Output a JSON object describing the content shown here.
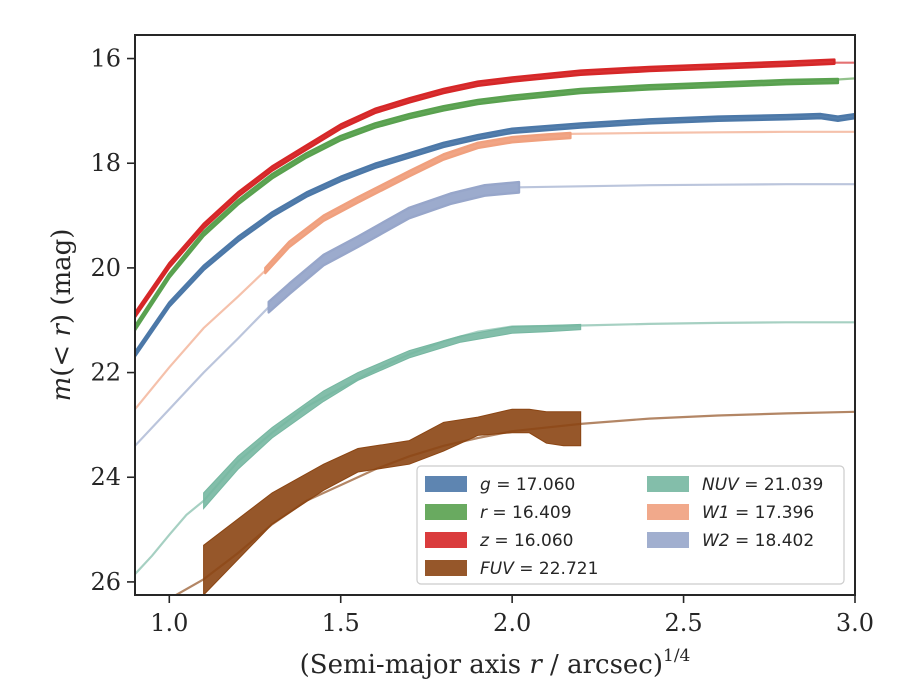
{
  "chart_data": {
    "type": "line",
    "xlabel": "(Semi-major axis r / arcsec)^1/4",
    "ylabel": "m(< r) (mag)",
    "xlim": [
      0.9,
      3.0
    ],
    "ylim": [
      26.25,
      15.55
    ],
    "y_inverted": true,
    "x_ticks": [
      1.0,
      1.5,
      2.0,
      2.5,
      3.0
    ],
    "x_tick_labels": [
      "1.0",
      "1.5",
      "2.0",
      "2.5",
      "3.0"
    ],
    "y_ticks": [
      16,
      18,
      20,
      22,
      24,
      26
    ],
    "y_tick_labels": [
      "16",
      "18",
      "20",
      "22",
      "24",
      "26"
    ],
    "legend_position": "lower-right",
    "series": [
      {
        "name": "g = 17.060",
        "band": "g",
        "color": "#4c78a8",
        "total_mag": 17.06,
        "extrapolation": [],
        "measured": [
          [
            0.9,
            21.65
          ],
          [
            1.0,
            20.7
          ],
          [
            1.1,
            20.0
          ],
          [
            1.2,
            19.45
          ],
          [
            1.3,
            18.98
          ],
          [
            1.4,
            18.6
          ],
          [
            1.5,
            18.3
          ],
          [
            1.6,
            18.05
          ],
          [
            1.7,
            17.85
          ],
          [
            1.8,
            17.65
          ],
          [
            1.9,
            17.5
          ],
          [
            2.0,
            17.38
          ],
          [
            2.2,
            17.28
          ],
          [
            2.4,
            17.2
          ],
          [
            2.6,
            17.15
          ],
          [
            2.8,
            17.12
          ],
          [
            2.9,
            17.1
          ],
          [
            2.95,
            17.15
          ],
          [
            3.0,
            17.1
          ]
        ],
        "band_halfwidth": 0.04
      },
      {
        "name": "r = 16.409",
        "band": "r",
        "color": "#59a14f",
        "total_mag": 16.409,
        "extrapolation": [
          [
            2.95,
            16.4
          ],
          [
            3.0,
            16.38
          ]
        ],
        "measured": [
          [
            0.9,
            21.15
          ],
          [
            1.0,
            20.15
          ],
          [
            1.1,
            19.35
          ],
          [
            1.2,
            18.75
          ],
          [
            1.3,
            18.25
          ],
          [
            1.4,
            17.85
          ],
          [
            1.5,
            17.52
          ],
          [
            1.6,
            17.28
          ],
          [
            1.7,
            17.1
          ],
          [
            1.8,
            16.95
          ],
          [
            1.9,
            16.83
          ],
          [
            2.0,
            16.75
          ],
          [
            2.2,
            16.62
          ],
          [
            2.4,
            16.55
          ],
          [
            2.6,
            16.5
          ],
          [
            2.8,
            16.45
          ],
          [
            2.95,
            16.43
          ]
        ],
        "band_halfwidth": 0.04
      },
      {
        "name": "z = 16.060",
        "band": "z",
        "color": "#d62728",
        "total_mag": 16.06,
        "extrapolation": [
          [
            2.94,
            16.08
          ],
          [
            3.0,
            16.08
          ]
        ],
        "measured": [
          [
            0.9,
            20.9
          ],
          [
            1.0,
            19.95
          ],
          [
            1.1,
            19.2
          ],
          [
            1.2,
            18.6
          ],
          [
            1.3,
            18.1
          ],
          [
            1.4,
            17.7
          ],
          [
            1.5,
            17.3
          ],
          [
            1.6,
            17.0
          ],
          [
            1.7,
            16.8
          ],
          [
            1.8,
            16.62
          ],
          [
            1.9,
            16.48
          ],
          [
            2.0,
            16.4
          ],
          [
            2.2,
            16.27
          ],
          [
            2.4,
            16.2
          ],
          [
            2.6,
            16.15
          ],
          [
            2.8,
            16.1
          ],
          [
            2.94,
            16.06
          ]
        ],
        "band_halfwidth": 0.04
      },
      {
        "name": "FUV = 22.721",
        "band": "FUV",
        "color": "#8b4513",
        "total_mag": 22.721,
        "extrapolation": [
          [
            1.02,
            26.25
          ],
          [
            1.1,
            25.95
          ],
          [
            1.2,
            25.45
          ],
          [
            1.3,
            24.9
          ],
          [
            1.4,
            24.45
          ],
          [
            1.5,
            24.15
          ],
          [
            1.6,
            23.85
          ],
          [
            1.7,
            23.6
          ],
          [
            1.8,
            23.4
          ],
          [
            1.9,
            23.25
          ],
          [
            2.0,
            23.12
          ],
          [
            2.2,
            22.98
          ],
          [
            2.4,
            22.88
          ],
          [
            2.6,
            22.82
          ],
          [
            2.8,
            22.78
          ],
          [
            3.0,
            22.75
          ]
        ],
        "measured_band": [
          [
            1.1,
            25.3,
            26.25
          ],
          [
            1.3,
            24.3,
            24.9
          ],
          [
            1.45,
            23.75,
            24.25
          ],
          [
            1.55,
            23.45,
            23.9
          ],
          [
            1.7,
            23.3,
            23.75
          ],
          [
            1.8,
            22.95,
            23.5
          ],
          [
            1.9,
            22.85,
            23.2
          ],
          [
            2.0,
            22.7,
            23.15
          ],
          [
            2.05,
            22.7,
            23.15
          ],
          [
            2.1,
            22.75,
            23.35
          ],
          [
            2.15,
            22.75,
            23.4
          ],
          [
            2.2,
            22.75,
            23.4
          ]
        ]
      },
      {
        "name": "NUV = 21.039",
        "band": "NUV",
        "color": "#76b7a1",
        "total_mag": 21.039,
        "extrapolation": [
          [
            0.9,
            25.85
          ],
          [
            0.95,
            25.5
          ],
          [
            1.0,
            25.1
          ],
          [
            1.05,
            24.72
          ],
          [
            1.1,
            24.45
          ],
          [
            1.2,
            23.7
          ],
          [
            1.3,
            23.15
          ],
          [
            1.4,
            22.65
          ],
          [
            1.5,
            22.3
          ],
          [
            1.6,
            21.95
          ],
          [
            1.7,
            21.65
          ],
          [
            1.8,
            21.4
          ],
          [
            1.9,
            21.22
          ],
          [
            2.0,
            21.12
          ],
          [
            2.2,
            21.1
          ],
          [
            2.4,
            21.07
          ],
          [
            2.6,
            21.05
          ],
          [
            2.8,
            21.04
          ],
          [
            3.0,
            21.04
          ]
        ],
        "measured_band": [
          [
            1.1,
            24.3,
            24.6
          ],
          [
            1.2,
            23.6,
            23.85
          ],
          [
            1.3,
            23.05,
            23.25
          ],
          [
            1.45,
            22.35,
            22.55
          ],
          [
            1.55,
            22.0,
            22.15
          ],
          [
            1.7,
            21.58,
            21.72
          ],
          [
            1.85,
            21.3,
            21.42
          ],
          [
            2.0,
            21.12,
            21.25
          ],
          [
            2.1,
            21.1,
            21.22
          ],
          [
            2.2,
            21.08,
            21.18
          ]
        ]
      },
      {
        "name": "W1 = 17.396",
        "band": "W1",
        "color": "#f0a07e",
        "total_mag": 17.396,
        "extrapolation": [
          [
            0.9,
            22.7
          ],
          [
            1.0,
            21.9
          ],
          [
            1.1,
            21.15
          ],
          [
            1.2,
            20.55
          ],
          [
            1.28,
            20.05
          ],
          [
            2.17,
            17.44
          ],
          [
            2.4,
            17.42
          ],
          [
            2.6,
            17.41
          ],
          [
            2.8,
            17.4
          ],
          [
            3.0,
            17.4
          ]
        ],
        "measured": [
          [
            1.28,
            20.05
          ],
          [
            1.35,
            19.55
          ],
          [
            1.45,
            19.05
          ],
          [
            1.55,
            18.7
          ],
          [
            1.7,
            18.2
          ],
          [
            1.8,
            17.88
          ],
          [
            1.9,
            17.66
          ],
          [
            2.0,
            17.55
          ],
          [
            2.1,
            17.5
          ],
          [
            2.17,
            17.47
          ]
        ],
        "band_halfwidth": 0.05
      },
      {
        "name": "W2 = 18.402",
        "band": "W2",
        "color": "#97a6ca",
        "total_mag": 18.402,
        "extrapolation": [
          [
            0.9,
            23.4
          ],
          [
            1.0,
            22.7
          ],
          [
            1.1,
            22.0
          ],
          [
            1.2,
            21.35
          ],
          [
            1.29,
            20.75
          ],
          [
            2.02,
            18.46
          ],
          [
            2.2,
            18.44
          ],
          [
            2.4,
            18.42
          ],
          [
            2.6,
            18.41
          ],
          [
            2.8,
            18.4
          ],
          [
            3.0,
            18.4
          ]
        ],
        "measured": [
          [
            1.29,
            20.75
          ],
          [
            1.35,
            20.4
          ],
          [
            1.45,
            19.85
          ],
          [
            1.55,
            19.5
          ],
          [
            1.7,
            18.95
          ],
          [
            1.82,
            18.68
          ],
          [
            1.92,
            18.52
          ],
          [
            2.02,
            18.46
          ]
        ],
        "band_halfwidth": 0.1
      }
    ],
    "legend": {
      "columns": [
        [
          {
            "label": "g = 17.060",
            "math": "g",
            "value": "17.060",
            "series": 0
          },
          {
            "label": "r = 16.409",
            "math": "r",
            "value": "16.409",
            "series": 1
          },
          {
            "label": "z = 16.060",
            "math": "z",
            "value": "16.060",
            "series": 2
          },
          {
            "label": "FUV = 22.721",
            "math": "FUV",
            "value": "22.721",
            "series": 3
          }
        ],
        [
          {
            "label": "NUV = 21.039",
            "math": "NUV",
            "value": "21.039",
            "series": 4
          },
          {
            "label": "W1 = 17.396",
            "math": "W1",
            "value": "17.396",
            "series": 5
          },
          {
            "label": "W2 = 18.402",
            "math": "W2",
            "value": "18.402",
            "series": 6
          }
        ]
      ]
    }
  }
}
